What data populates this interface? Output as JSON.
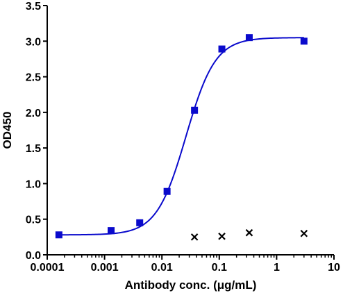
{
  "chart_data": {
    "type": "scatter",
    "xlabel": "Antibody conc. (μg/mL)",
    "ylabel": "OD450",
    "x_scale": "log",
    "xlim": [
      0.0001,
      10
    ],
    "ylim": [
      0,
      3.5
    ],
    "x_ticks": [
      "0.0001",
      "0.001",
      "0.01",
      "0.1",
      "1",
      "10"
    ],
    "y_ticks": [
      "0.0",
      "0.5",
      "1.0",
      "1.5",
      "2.0",
      "2.5",
      "3.0",
      "3.5"
    ],
    "grid": false,
    "series": [
      {
        "marker": "square",
        "color": "#0a0acc",
        "fit": "sigmoidal",
        "x": [
          0.00016,
          0.0013,
          0.0041,
          0.0123,
          0.037,
          0.111,
          0.333,
          3.0
        ],
        "y": [
          0.28,
          0.34,
          0.45,
          0.89,
          2.03,
          2.89,
          3.05,
          3.0
        ]
      },
      {
        "marker": "x",
        "color": "#000000",
        "x": [
          0.037,
          0.111,
          0.333,
          3.0
        ],
        "y": [
          0.25,
          0.26,
          0.31,
          0.3
        ]
      }
    ]
  }
}
